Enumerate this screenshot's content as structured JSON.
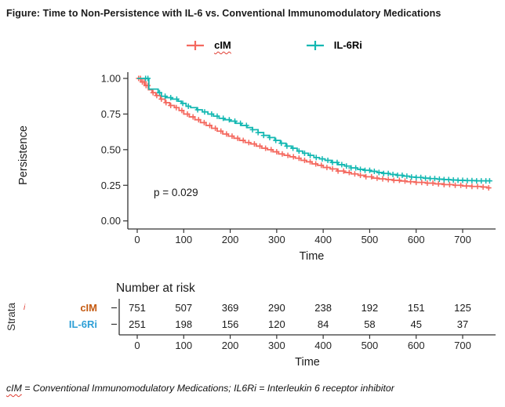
{
  "page": {
    "title": "Figure: Time to Non-Persistence with IL-6 vs. Conventional Immunomodulatory Medications",
    "footnote_lead": "cIM",
    "footnote_rest": " = Conventional Immunomodulatory Medications; IL6Ri = Interleukin 6 receptor inhibitor"
  },
  "colors": {
    "cim_curve": "#F4695F",
    "il6ri_curve": "#14B8B2",
    "cim_table_label": "#C55A11",
    "il6ri_table_label": "#2E9FD6",
    "axis": "#333333",
    "tick_text": "#262626",
    "spellcheck_red": "#E03C31"
  },
  "legend": {
    "items": [
      {
        "label": "cIM",
        "color": "#F4695F"
      },
      {
        "label": "IL-6Ri",
        "color": "#14B8B2"
      }
    ]
  },
  "chart_data": {
    "type": "line",
    "subtype": "kaplan-meier-step",
    "title": "",
    "xlabel": "Time",
    "ylabel": "Persistence",
    "xlim": [
      0,
      760
    ],
    "ylim": [
      0,
      1.0
    ],
    "xticks": [
      0,
      100,
      200,
      300,
      400,
      500,
      600,
      700
    ],
    "yticks": [
      0.0,
      0.25,
      0.5,
      0.75,
      1.0
    ],
    "ytick_labels": [
      "0.00",
      "0.25",
      "0.50",
      "0.75",
      "1.00"
    ],
    "annotation": "p = 0.029",
    "grid": false,
    "legend_position": "top",
    "series": [
      {
        "name": "cIM",
        "color": "#F4695F",
        "points": [
          [
            0,
            1.0
          ],
          [
            8,
            0.975
          ],
          [
            16,
            0.95
          ],
          [
            24,
            0.92
          ],
          [
            32,
            0.9
          ],
          [
            40,
            0.88
          ],
          [
            50,
            0.855
          ],
          [
            60,
            0.83
          ],
          [
            70,
            0.81
          ],
          [
            80,
            0.795
          ],
          [
            90,
            0.775
          ],
          [
            100,
            0.75
          ],
          [
            112,
            0.73
          ],
          [
            124,
            0.71
          ],
          [
            136,
            0.69
          ],
          [
            148,
            0.67
          ],
          [
            160,
            0.65
          ],
          [
            172,
            0.63
          ],
          [
            184,
            0.61
          ],
          [
            196,
            0.595
          ],
          [
            208,
            0.58
          ],
          [
            220,
            0.565
          ],
          [
            232,
            0.55
          ],
          [
            244,
            0.54
          ],
          [
            256,
            0.525
          ],
          [
            268,
            0.51
          ],
          [
            280,
            0.5
          ],
          [
            292,
            0.485
          ],
          [
            304,
            0.47
          ],
          [
            316,
            0.46
          ],
          [
            328,
            0.45
          ],
          [
            340,
            0.44
          ],
          [
            352,
            0.425
          ],
          [
            364,
            0.415
          ],
          [
            376,
            0.4
          ],
          [
            388,
            0.39
          ],
          [
            400,
            0.375
          ],
          [
            415,
            0.365
          ],
          [
            430,
            0.35
          ],
          [
            445,
            0.34
          ],
          [
            460,
            0.33
          ],
          [
            475,
            0.32
          ],
          [
            490,
            0.31
          ],
          [
            505,
            0.3
          ],
          [
            520,
            0.295
          ],
          [
            535,
            0.29
          ],
          [
            550,
            0.285
          ],
          [
            565,
            0.28
          ],
          [
            580,
            0.275
          ],
          [
            600,
            0.27
          ],
          [
            620,
            0.265
          ],
          [
            640,
            0.26
          ],
          [
            660,
            0.255
          ],
          [
            680,
            0.25
          ],
          [
            700,
            0.245
          ],
          [
            720,
            0.242
          ],
          [
            740,
            0.238
          ],
          [
            752,
            0.232
          ]
        ],
        "censor_times": [
          3,
          7,
          11,
          15,
          19,
          23,
          34,
          42,
          52,
          62,
          72,
          84,
          96,
          108,
          120,
          132,
          144,
          156,
          168,
          180,
          192,
          204,
          216,
          228,
          240,
          252,
          264,
          276,
          288,
          300,
          312,
          324,
          336,
          348,
          360,
          372,
          384,
          396,
          408,
          420,
          432,
          444,
          456,
          468,
          480,
          492,
          504,
          516,
          528,
          540,
          552,
          564,
          576,
          588,
          600,
          612,
          624,
          636,
          648,
          660,
          672,
          684,
          696,
          708,
          720,
          732,
          744,
          756
        ]
      },
      {
        "name": "IL-6Ri",
        "color": "#14B8B2",
        "points": [
          [
            0,
            1.0
          ],
          [
            25,
            0.925
          ],
          [
            45,
            0.9
          ],
          [
            52,
            0.875
          ],
          [
            62,
            0.865
          ],
          [
            75,
            0.855
          ],
          [
            88,
            0.84
          ],
          [
            95,
            0.825
          ],
          [
            105,
            0.805
          ],
          [
            115,
            0.795
          ],
          [
            128,
            0.78
          ],
          [
            140,
            0.765
          ],
          [
            152,
            0.75
          ],
          [
            164,
            0.735
          ],
          [
            176,
            0.72
          ],
          [
            188,
            0.71
          ],
          [
            200,
            0.7
          ],
          [
            212,
            0.685
          ],
          [
            224,
            0.67
          ],
          [
            236,
            0.655
          ],
          [
            248,
            0.64
          ],
          [
            260,
            0.62
          ],
          [
            272,
            0.6
          ],
          [
            284,
            0.585
          ],
          [
            296,
            0.565
          ],
          [
            308,
            0.545
          ],
          [
            320,
            0.525
          ],
          [
            332,
            0.51
          ],
          [
            344,
            0.49
          ],
          [
            356,
            0.475
          ],
          [
            368,
            0.46
          ],
          [
            380,
            0.445
          ],
          [
            392,
            0.435
          ],
          [
            404,
            0.425
          ],
          [
            418,
            0.41
          ],
          [
            432,
            0.395
          ],
          [
            446,
            0.385
          ],
          [
            460,
            0.372
          ],
          [
            474,
            0.362
          ],
          [
            488,
            0.355
          ],
          [
            502,
            0.348
          ],
          [
            516,
            0.34
          ],
          [
            530,
            0.333
          ],
          [
            544,
            0.326
          ],
          [
            558,
            0.32
          ],
          [
            572,
            0.314
          ],
          [
            586,
            0.308
          ],
          [
            600,
            0.305
          ],
          [
            615,
            0.3
          ],
          [
            630,
            0.297
          ],
          [
            645,
            0.293
          ],
          [
            660,
            0.29
          ],
          [
            675,
            0.287
          ],
          [
            690,
            0.285
          ],
          [
            705,
            0.283
          ],
          [
            730,
            0.281
          ],
          [
            760,
            0.28
          ]
        ],
        "censor_times": [
          18,
          23,
          48,
          60,
          72,
          85,
          98,
          110,
          130,
          145,
          160,
          172,
          185,
          198,
          210,
          222,
          235,
          248,
          260,
          272,
          285,
          298,
          310,
          322,
          335,
          348,
          360,
          372,
          385,
          398,
          410,
          420,
          430,
          440,
          450,
          460,
          470,
          480,
          490,
          500,
          510,
          520,
          530,
          540,
          550,
          560,
          570,
          580,
          590,
          600,
          610,
          620,
          630,
          640,
          650,
          660,
          670,
          680,
          690,
          700,
          710,
          720,
          730,
          740,
          750,
          758
        ]
      }
    ]
  },
  "risk_table": {
    "title": "Number at risk",
    "strata_label": "Strata",
    "strata_mark": "i",
    "xlabel": "Time",
    "xticks": [
      0,
      100,
      200,
      300,
      400,
      500,
      600,
      700
    ],
    "rows": [
      {
        "label": "cIM",
        "color": "#C55A11",
        "values": [
          751,
          507,
          369,
          290,
          238,
          192,
          151,
          125
        ]
      },
      {
        "label": "IL-6Ri",
        "color": "#2E9FD6",
        "values": [
          251,
          198,
          156,
          120,
          84,
          58,
          45,
          37
        ]
      }
    ]
  }
}
